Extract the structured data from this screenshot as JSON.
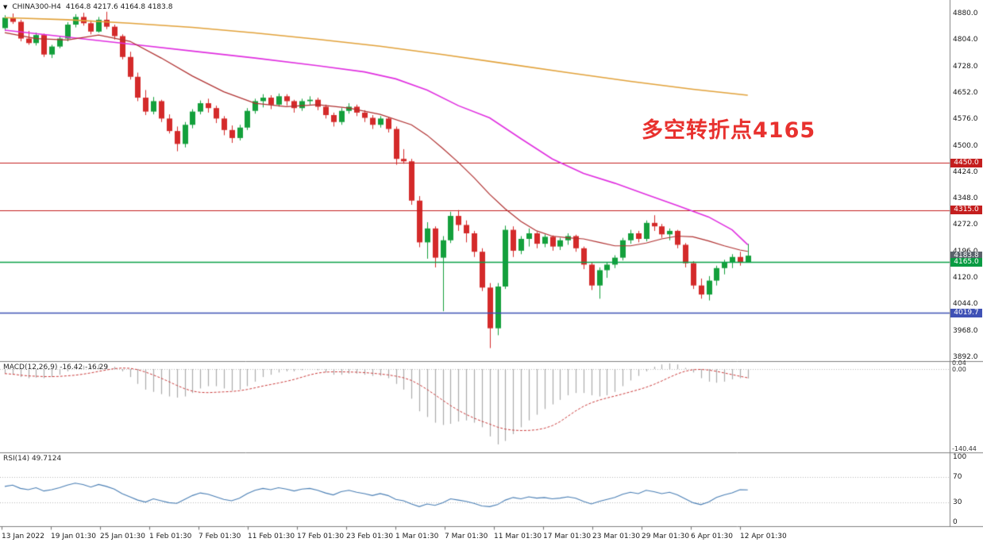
{
  "header": {
    "symbol": "CHINA300-H4",
    "ohlc": "4164.8 4217.6 4164.8 4183.8",
    "collapse_icon": "triangle-down"
  },
  "annotation": {
    "text": "多空转折点4165",
    "color": "#e8312e"
  },
  "colors": {
    "up": "#14a03c",
    "down": "#d42a2a",
    "ma_slow": "#e2a23a",
    "ma_mid": "#e02ee0",
    "ma_fast": "#b03030",
    "macd_hist": "#ababab",
    "macd_signal": "#cc3b3b",
    "rsi_line": "#4a7fb5",
    "separator": "#7f7f7f",
    "grid_dotted": "#b8b8b8"
  },
  "price_axis": {
    "ticks": [
      "4880.0",
      "4804.0",
      "4728.0",
      "4652.0",
      "4576.0",
      "4500.0",
      "4424.0",
      "4348.0",
      "4272.0",
      "4196.0",
      "4120.0",
      "4044.0",
      "3968.0",
      "3892.0"
    ]
  },
  "time_axis": {
    "labels": [
      "13 Jan 2022",
      "19 Jan 01:30",
      "25 Jan 01:30",
      "1 Feb 01:30",
      "7 Feb 01:30",
      "11 Feb 01:30",
      "17 Feb 01:30",
      "23 Feb 01:30",
      "1 Mar 01:30",
      "7 Mar 01:30",
      "11 Mar 01:30",
      "17 Mar 01:30",
      "23 Mar 01:30",
      "29 Mar 01:30",
      "6 Apr 01:30",
      "12 Apr 01:30"
    ]
  },
  "levels": [
    {
      "value": 4450.0,
      "color": "#c41e1e",
      "width": 1
    },
    {
      "value": 4315.0,
      "color": "#c41e1e",
      "width": 1
    },
    {
      "value": 4165.0,
      "color": "#0aa147",
      "width": 1.4
    },
    {
      "value": 4019.7,
      "color": "#3f51b5",
      "width": 1.4
    }
  ],
  "axis_tags": [
    {
      "text": "4450.0",
      "value": 4450.0,
      "bg": "#c41e1e"
    },
    {
      "text": "4315.0",
      "value": 4315.0,
      "bg": "#c41e1e"
    },
    {
      "text": "4183.8",
      "value": 4183.8,
      "bg": "#5a626b"
    },
    {
      "text": "4165.0",
      "value": 4165.0,
      "bg": "#089b42"
    },
    {
      "text": "4019.7",
      "value": 4019.7,
      "bg": "#3f51b5"
    }
  ],
  "macd_panel": {
    "label": "MACD(12,26,9) -16.42 -16.29",
    "axis_labels": [
      "0.04",
      "0.00",
      "-140.44"
    ]
  },
  "rsi_panel": {
    "label": "RSI(14) 49.7124",
    "axis_labels": [
      "100",
      "70",
      "30",
      "0"
    ]
  },
  "chart_data": {
    "type": "candlestick",
    "symbol": "CHINA300-H4",
    "timeframe": "H4",
    "title": "CHINA300-H4 4164.8 4217.6 4164.8 4183.8",
    "ylim": [
      3892,
      4880
    ],
    "x_labels": [
      "13 Jan 2022",
      "19 Jan 01:30",
      "25 Jan 01:30",
      "1 Feb 01:30",
      "7 Feb 01:30",
      "11 Feb 01:30",
      "17 Feb 01:30",
      "23 Feb 01:30",
      "1 Mar 01:30",
      "7 Mar 01:30",
      "11 Mar 01:30",
      "17 Mar 01:30",
      "23 Mar 01:30",
      "29 Mar 01:30",
      "6 Apr 01:30",
      "12 Apr 01:30"
    ],
    "horizontal_levels": [
      4450.0,
      4315.0,
      4165.0,
      4019.7
    ],
    "current_price": 4183.8,
    "candles": [
      [
        4838,
        4875,
        4830,
        4868
      ],
      [
        4868,
        4880,
        4850,
        4856
      ],
      [
        4856,
        4862,
        4800,
        4808
      ],
      [
        4808,
        4830,
        4790,
        4795
      ],
      [
        4795,
        4825,
        4788,
        4818
      ],
      [
        4818,
        4822,
        4755,
        4762
      ],
      [
        4762,
        4790,
        4752,
        4785
      ],
      [
        4785,
        4815,
        4780,
        4808
      ],
      [
        4808,
        4855,
        4800,
        4848
      ],
      [
        4848,
        4878,
        4840,
        4870
      ],
      [
        4870,
        4882,
        4845,
        4852
      ],
      [
        4852,
        4860,
        4820,
        4828
      ],
      [
        4828,
        4870,
        4825,
        4862
      ],
      [
        4862,
        4885,
        4835,
        4842
      ],
      [
        4842,
        4848,
        4805,
        4815
      ],
      [
        4815,
        4820,
        4748,
        4755
      ],
      [
        4755,
        4770,
        4690,
        4698
      ],
      [
        4698,
        4710,
        4628,
        4638
      ],
      [
        4638,
        4660,
        4588,
        4598
      ],
      [
        4598,
        4640,
        4590,
        4628
      ],
      [
        4628,
        4632,
        4568,
        4578
      ],
      [
        4578,
        4590,
        4535,
        4542
      ],
      [
        4542,
        4555,
        4484,
        4505
      ],
      [
        4505,
        4568,
        4495,
        4560
      ],
      [
        4560,
        4605,
        4550,
        4598
      ],
      [
        4598,
        4630,
        4590,
        4622
      ],
      [
        4622,
        4635,
        4595,
        4608
      ],
      [
        4608,
        4615,
        4565,
        4578
      ],
      [
        4578,
        4585,
        4530,
        4545
      ],
      [
        4545,
        4558,
        4508,
        4522
      ],
      [
        4522,
        4560,
        4515,
        4552
      ],
      [
        4552,
        4608,
        4545,
        4600
      ],
      [
        4600,
        4635,
        4592,
        4628
      ],
      [
        4628,
        4648,
        4610,
        4638
      ],
      [
        4638,
        4645,
        4605,
        4618
      ],
      [
        4618,
        4650,
        4612,
        4642
      ],
      [
        4642,
        4648,
        4615,
        4628
      ],
      [
        4628,
        4632,
        4595,
        4608
      ],
      [
        4608,
        4635,
        4600,
        4628
      ],
      [
        4628,
        4642,
        4618,
        4632
      ],
      [
        4632,
        4638,
        4602,
        4612
      ],
      [
        4612,
        4618,
        4578,
        4588
      ],
      [
        4588,
        4595,
        4555,
        4568
      ],
      [
        4568,
        4608,
        4560,
        4600
      ],
      [
        4600,
        4622,
        4592,
        4612
      ],
      [
        4612,
        4618,
        4585,
        4595
      ],
      [
        4595,
        4602,
        4568,
        4580
      ],
      [
        4580,
        4588,
        4548,
        4560
      ],
      [
        4560,
        4585,
        4552,
        4578
      ],
      [
        4578,
        4582,
        4538,
        4548
      ],
      [
        4548,
        4555,
        4445,
        4462
      ],
      [
        4462,
        4490,
        4448,
        4455
      ],
      [
        4455,
        4462,
        4330,
        4342
      ],
      [
        4342,
        4355,
        4208,
        4222
      ],
      [
        4222,
        4280,
        4175,
        4262
      ],
      [
        4262,
        4268,
        4150,
        4178
      ],
      [
        4178,
        4240,
        4024,
        4228
      ],
      [
        4228,
        4310,
        4220,
        4298
      ],
      [
        4298,
        4315,
        4255,
        4272
      ],
      [
        4272,
        4285,
        4222,
        4248
      ],
      [
        4248,
        4255,
        4180,
        4195
      ],
      [
        4195,
        4205,
        4082,
        4092
      ],
      [
        4092,
        4105,
        3918,
        3975
      ],
      [
        3975,
        4105,
        3955,
        4095
      ],
      [
        4095,
        4270,
        4088,
        4258
      ],
      [
        4258,
        4268,
        4180,
        4198
      ],
      [
        4198,
        4240,
        4188,
        4232
      ],
      [
        4232,
        4262,
        4210,
        4248
      ],
      [
        4248,
        4252,
        4205,
        4218
      ],
      [
        4218,
        4245,
        4208,
        4238
      ],
      [
        4238,
        4242,
        4198,
        4210
      ],
      [
        4210,
        4235,
        4200,
        4228
      ],
      [
        4228,
        4248,
        4215,
        4240
      ],
      [
        4240,
        4244,
        4195,
        4205
      ],
      [
        4205,
        4210,
        4145,
        4158
      ],
      [
        4158,
        4165,
        4085,
        4098
      ],
      [
        4098,
        4150,
        4060,
        4142
      ],
      [
        4142,
        4165,
        4120,
        4158
      ],
      [
        4158,
        4185,
        4148,
        4178
      ],
      [
        4178,
        4235,
        4170,
        4228
      ],
      [
        4228,
        4258,
        4218,
        4248
      ],
      [
        4248,
        4255,
        4222,
        4232
      ],
      [
        4232,
        4285,
        4225,
        4278
      ],
      [
        4278,
        4300,
        4255,
        4268
      ],
      [
        4268,
        4275,
        4235,
        4245
      ],
      [
        4245,
        4262,
        4228,
        4255
      ],
      [
        4255,
        4258,
        4205,
        4215
      ],
      [
        4215,
        4220,
        4150,
        4162
      ],
      [
        4162,
        4168,
        4088,
        4098
      ],
      [
        4098,
        4118,
        4060,
        4072
      ],
      [
        4072,
        4125,
        4055,
        4112
      ],
      [
        4112,
        4155,
        4098,
        4148
      ],
      [
        4148,
        4172,
        4130,
        4165
      ],
      [
        4165,
        4188,
        4148,
        4180
      ],
      [
        4180,
        4195,
        4155,
        4165
      ],
      [
        4164.8,
        4217.6,
        4164.8,
        4183.8
      ]
    ],
    "overlays": [
      {
        "name": "ma-slow",
        "color": "#e2a23a",
        "points": [
          [
            0,
            4868
          ],
          [
            8,
            4862
          ],
          [
            16,
            4852
          ],
          [
            24,
            4840
          ],
          [
            32,
            4824
          ],
          [
            40,
            4806
          ],
          [
            48,
            4786
          ],
          [
            56,
            4762
          ],
          [
            64,
            4736
          ],
          [
            72,
            4710
          ],
          [
            80,
            4685
          ],
          [
            88,
            4662
          ],
          [
            95,
            4645
          ]
        ]
      },
      {
        "name": "ma-mid",
        "color": "#e02ee0",
        "points": [
          [
            0,
            4832
          ],
          [
            8,
            4812
          ],
          [
            16,
            4792
          ],
          [
            24,
            4772
          ],
          [
            32,
            4752
          ],
          [
            40,
            4730
          ],
          [
            46,
            4712
          ],
          [
            50,
            4692
          ],
          [
            54,
            4660
          ],
          [
            58,
            4615
          ],
          [
            62,
            4580
          ],
          [
            66,
            4520
          ],
          [
            70,
            4462
          ],
          [
            74,
            4420
          ],
          [
            78,
            4392
          ],
          [
            82,
            4360
          ],
          [
            86,
            4328
          ],
          [
            90,
            4295
          ],
          [
            93,
            4258
          ],
          [
            95,
            4215
          ]
        ]
      },
      {
        "name": "ma-fast",
        "color": "#b03030",
        "points": [
          [
            0,
            4825
          ],
          [
            4,
            4808
          ],
          [
            8,
            4804
          ],
          [
            12,
            4818
          ],
          [
            16,
            4800
          ],
          [
            20,
            4752
          ],
          [
            24,
            4700
          ],
          [
            28,
            4655
          ],
          [
            32,
            4622
          ],
          [
            36,
            4612
          ],
          [
            40,
            4618
          ],
          [
            44,
            4608
          ],
          [
            48,
            4590
          ],
          [
            52,
            4560
          ],
          [
            54,
            4530
          ],
          [
            56,
            4492
          ],
          [
            58,
            4452
          ],
          [
            60,
            4408
          ],
          [
            62,
            4360
          ],
          [
            64,
            4318
          ],
          [
            66,
            4282
          ],
          [
            68,
            4255
          ],
          [
            70,
            4240
          ],
          [
            72,
            4235
          ],
          [
            74,
            4232
          ],
          [
            76,
            4222
          ],
          [
            78,
            4212
          ],
          [
            80,
            4212
          ],
          [
            82,
            4220
          ],
          [
            84,
            4232
          ],
          [
            86,
            4240
          ],
          [
            88,
            4238
          ],
          [
            90,
            4226
          ],
          [
            92,
            4212
          ],
          [
            94,
            4200
          ],
          [
            95,
            4196
          ]
        ]
      }
    ],
    "indicators": {
      "macd": {
        "params": "12,26,9",
        "main_last": -16.42,
        "signal_last": -16.29,
        "range_labels": [
          0.04,
          0.0,
          -140.44
        ],
        "values": [
          -8,
          -10,
          -14,
          -16,
          -15,
          -16,
          -14,
          -10,
          -4,
          2,
          6,
          6,
          8,
          8,
          4,
          -4,
          -14,
          -26,
          -36,
          -40,
          -44,
          -48,
          -50,
          -48,
          -42,
          -34,
          -30,
          -30,
          -34,
          -38,
          -36,
          -30,
          -22,
          -14,
          -10,
          -6,
          -4,
          -4,
          -2,
          0,
          -2,
          -6,
          -10,
          -10,
          -8,
          -8,
          -10,
          -12,
          -12,
          -16,
          -26,
          -36,
          -52,
          -74,
          -84,
          -94,
          -98,
          -96,
          -92,
          -90,
          -94,
          -102,
          -118,
          -132,
          -126,
          -114,
          -102,
          -90,
          -80,
          -70,
          -62,
          -54,
          -46,
          -42,
          -42,
          -46,
          -48,
          -46,
          -40,
          -30,
          -20,
          -12,
          -4,
          4,
          8,
          10,
          8,
          2,
          -6,
          -16,
          -22,
          -24,
          -22,
          -18,
          -16,
          -16.42
        ]
      },
      "rsi": {
        "period": 14,
        "last": 49.7124,
        "levels": [
          70,
          30
        ],
        "values": [
          55,
          57,
          52,
          50,
          53,
          48,
          50,
          53,
          57,
          60,
          58,
          54,
          58,
          55,
          51,
          44,
          39,
          34,
          31,
          36,
          33,
          30,
          29,
          35,
          41,
          45,
          43,
          39,
          35,
          33,
          37,
          44,
          49,
          52,
          50,
          53,
          51,
          48,
          51,
          52,
          49,
          45,
          42,
          47,
          49,
          46,
          44,
          41,
          44,
          41,
          35,
          33,
          28,
          24,
          28,
          26,
          30,
          36,
          34,
          32,
          29,
          25,
          24,
          27,
          34,
          38,
          36,
          39,
          37,
          38,
          36,
          37,
          39,
          37,
          32,
          28,
          32,
          35,
          38,
          43,
          46,
          44,
          49,
          47,
          44,
          46,
          42,
          36,
          30,
          27,
          31,
          38,
          42,
          45,
          50,
          49.71
        ]
      }
    }
  }
}
